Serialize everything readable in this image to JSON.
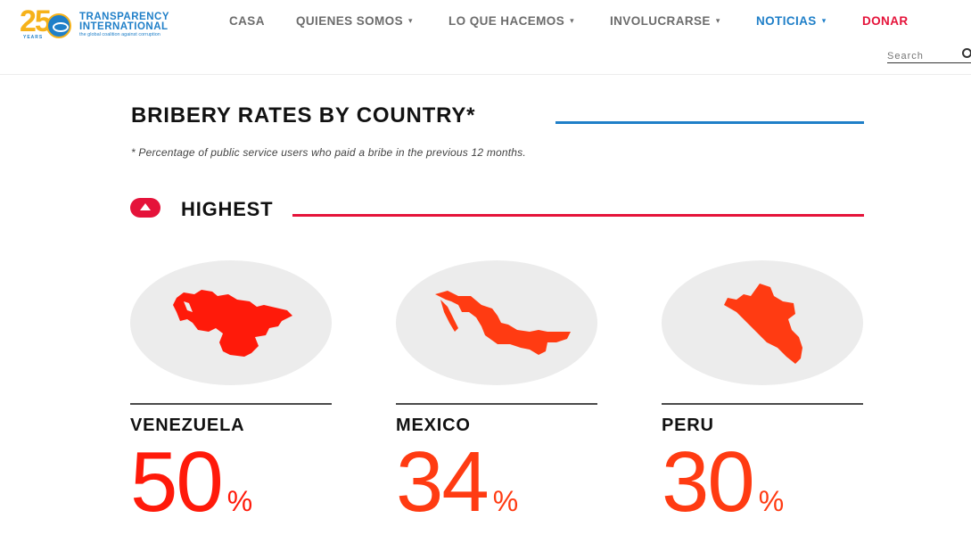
{
  "brand": {
    "logo_number": "25",
    "logo_years": "YEARS",
    "logo_line1": "TRANSPARENCY",
    "logo_line2": "INTERNATIONAL",
    "logo_tagline": "the global coalition against corruption"
  },
  "nav": {
    "items": [
      {
        "label": "CASA",
        "has_caret": false
      },
      {
        "label": "QUIENES SOMOS",
        "has_caret": true
      },
      {
        "label": "LO QUE HACEMOS",
        "has_caret": true
      },
      {
        "label": "INVOLUCRARSE",
        "has_caret": true
      },
      {
        "label": "NOTICIAS",
        "has_caret": true,
        "active": true
      },
      {
        "label": "DONAR",
        "has_caret": false
      }
    ],
    "caret_glyph": "▾"
  },
  "search": {
    "placeholder": "Search",
    "icon": "search-icon"
  },
  "section": {
    "title": "BRIBERY RATES BY COUNTRY*",
    "footnote": "* Percentage of public service users who paid a bribe in the previous 12 months."
  },
  "highest": {
    "label": "HIGHEST",
    "toggle_icon": "chevron-up-icon"
  },
  "countries": [
    {
      "name": "VENEZUELA",
      "value": "50",
      "unit": "%",
      "color": "#ff1a0a",
      "map_icon": "venezuela-map-icon"
    },
    {
      "name": "MEXICO",
      "value": "34",
      "unit": "%",
      "color": "#ff3b12",
      "map_icon": "mexico-map-icon"
    },
    {
      "name": "PERU",
      "value": "30",
      "unit": "%",
      "color": "#ff3b12",
      "map_icon": "peru-map-icon"
    }
  ],
  "colors": {
    "accent_blue": "#1f7fc8",
    "accent_red": "#e5133a",
    "circle_bg": "#ececec",
    "logo_gold": "#f6b21a"
  }
}
